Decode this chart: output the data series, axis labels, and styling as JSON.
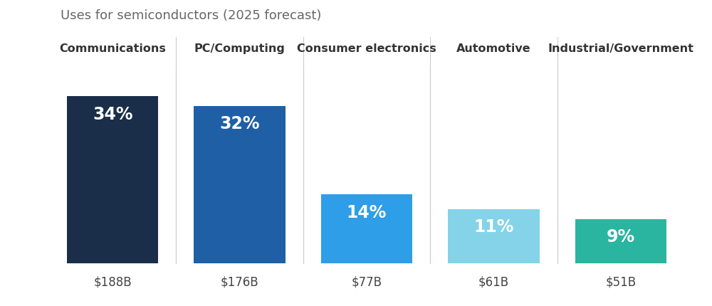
{
  "title": "Uses for semiconductors (2025 forecast)",
  "categories": [
    "Communications",
    "PC/Computing",
    "Consumer electronics",
    "Automotive",
    "Industrial/Government"
  ],
  "values": [
    34,
    32,
    14,
    11,
    9
  ],
  "dollar_labels": [
    "$188B",
    "$176B",
    "$77B",
    "$61B",
    "$51B"
  ],
  "pct_labels": [
    "34%",
    "32%",
    "14%",
    "11%",
    "9%"
  ],
  "bar_colors": [
    "#1a2e4a",
    "#1f5fa6",
    "#2e9ee8",
    "#85d3e8",
    "#2ab5a0"
  ],
  "background_color": "#ffffff",
  "title_color": "#666666",
  "category_color": "#333333",
  "dollar_color": "#444444",
  "pct_text_color": "#ffffff",
  "separator_color": "#cccccc",
  "title_fontsize": 13,
  "category_fontsize": 11.5,
  "pct_fontsize": 17,
  "dollar_fontsize": 12,
  "bar_width": 0.72,
  "ylim": [
    0,
    40
  ],
  "figsize": [
    10.0,
    4.31
  ]
}
